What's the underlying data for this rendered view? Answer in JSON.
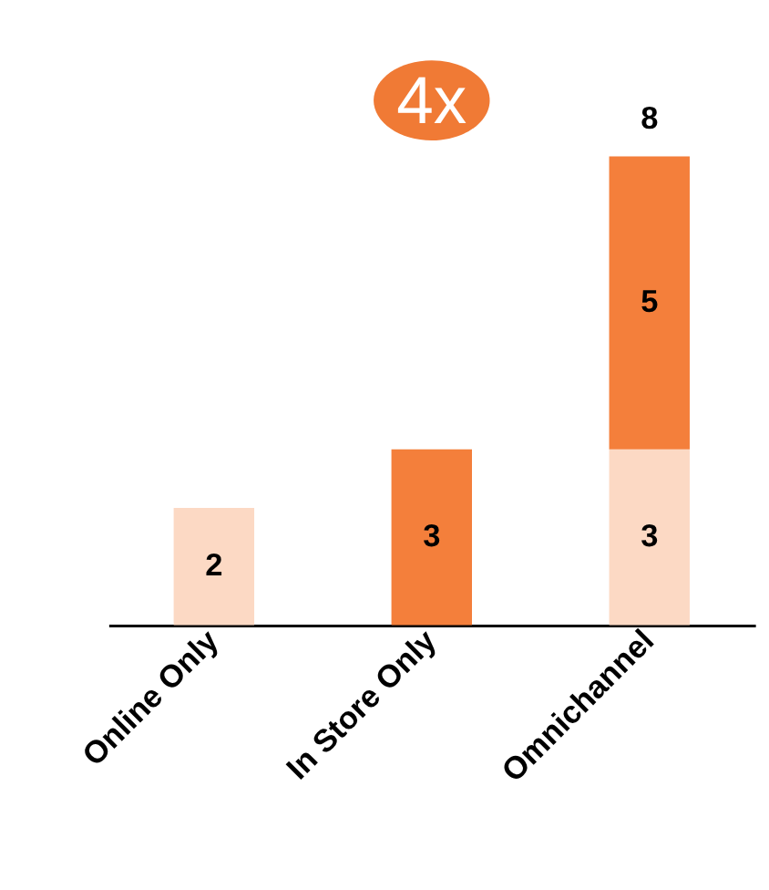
{
  "chart_data": {
    "type": "bar",
    "stacked": true,
    "categories": [
      "Online Only",
      "In Store Only",
      "Omnichannel"
    ],
    "series": [
      {
        "color": "#fcd9c4",
        "values": [
          2,
          null,
          3
        ]
      },
      {
        "color": "#f47f3b",
        "values": [
          null,
          3,
          5
        ]
      }
    ],
    "tick_labels": "x",
    "data_labels": true,
    "totals": [
      null,
      null,
      "8"
    ],
    "grid": false,
    "annotations": [
      "4x"
    ]
  }
}
